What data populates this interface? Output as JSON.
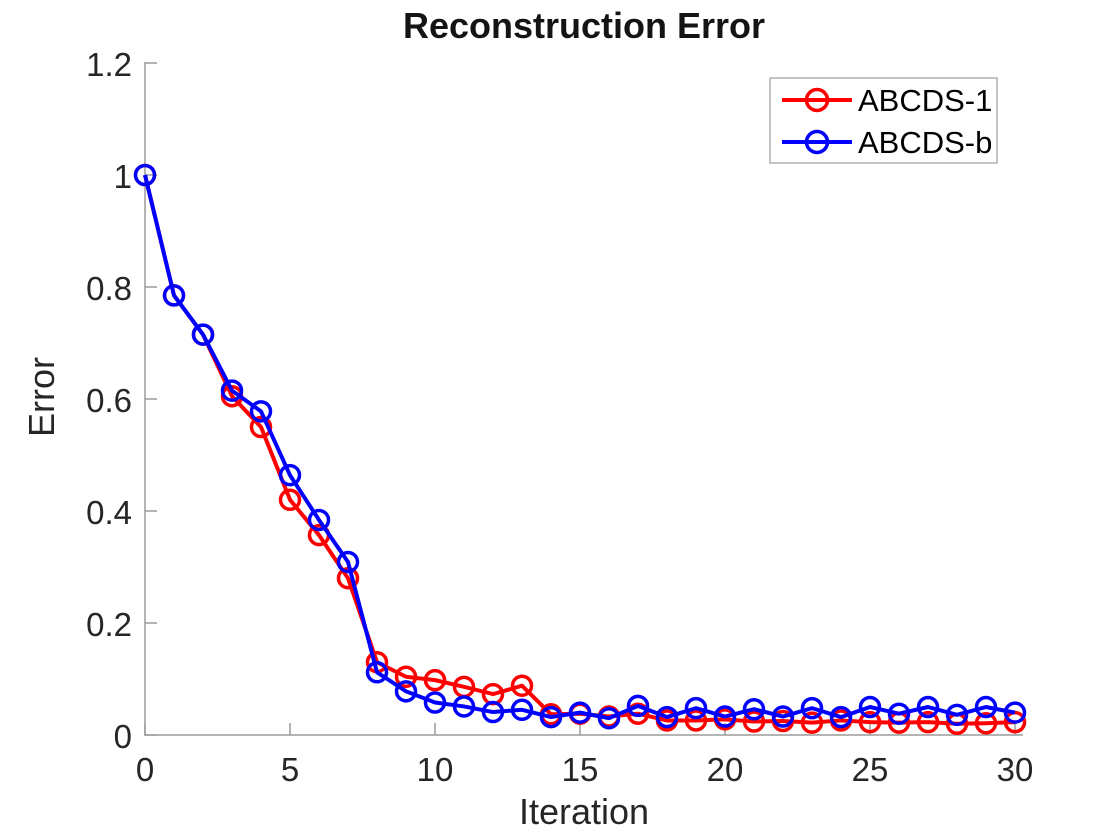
{
  "chart_data": {
    "type": "line",
    "title": "Reconstruction Error",
    "xlabel": "Iteration",
    "ylabel": "Error",
    "xlim": [
      0,
      30.3
    ],
    "ylim": [
      0,
      1.2
    ],
    "grid": false,
    "box": false,
    "tick_direction": "in",
    "legend_position": "top-right",
    "marker": "open-circle",
    "x_ticks": [
      "0",
      "5",
      "10",
      "15",
      "20",
      "25",
      "30"
    ],
    "y_ticks": [
      "0",
      "0.2",
      "0.4",
      "0.6",
      "0.8",
      "1",
      "1.2"
    ],
    "x": [
      0,
      1,
      2,
      3,
      4,
      5,
      6,
      7,
      8,
      9,
      10,
      11,
      12,
      13,
      14,
      15,
      16,
      17,
      18,
      19,
      20,
      21,
      22,
      23,
      24,
      25,
      26,
      27,
      28,
      29,
      30
    ],
    "series": [
      {
        "name": "ABCDS-1",
        "color": "#ff0000",
        "values": [
          1.0,
          0.785,
          0.715,
          0.605,
          0.55,
          0.42,
          0.357,
          0.28,
          0.13,
          0.104,
          0.098,
          0.086,
          0.073,
          0.088,
          0.037,
          0.038,
          0.033,
          0.038,
          0.026,
          0.026,
          0.028,
          0.024,
          0.025,
          0.022,
          0.026,
          0.023,
          0.022,
          0.023,
          0.02,
          0.021,
          0.023
        ]
      },
      {
        "name": "ABCDS-b",
        "color": "#0000ff",
        "values": [
          1.0,
          0.785,
          0.715,
          0.615,
          0.578,
          0.464,
          0.384,
          0.309,
          0.112,
          0.078,
          0.058,
          0.051,
          0.041,
          0.045,
          0.032,
          0.04,
          0.03,
          0.052,
          0.032,
          0.048,
          0.033,
          0.046,
          0.033,
          0.048,
          0.032,
          0.05,
          0.038,
          0.05,
          0.036,
          0.05,
          0.04
        ]
      }
    ]
  },
  "style_colors": {
    "axis_line": "#9b9b9b",
    "tick_label": "#262626",
    "axis_label": "#262626",
    "title_text": "#141414",
    "legend_border": "#b0b0b0",
    "legend_text": "#000000",
    "background": "#ffffff"
  }
}
